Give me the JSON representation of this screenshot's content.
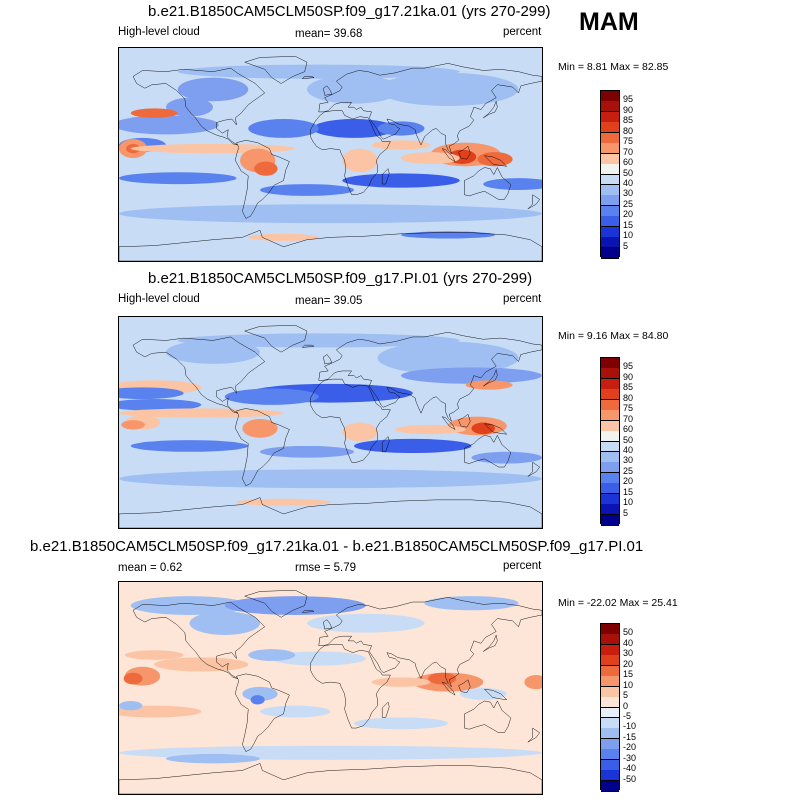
{
  "season": "MAM",
  "panels": [
    {
      "title": "b.e21.B1850CAM5CLM50SP.f09_g17.21ka.01 (yrs 270-299)",
      "left_label": "High-level cloud",
      "center_label": "mean=  39.68",
      "right_label": "percent",
      "minmax": "Min =  8.81 Max =  82.85",
      "colorbar": {
        "labels": [
          "95",
          "90",
          "85",
          "80",
          "75",
          "70",
          "60",
          "50",
          "40",
          "30",
          "25",
          "20",
          "15",
          "10",
          "5"
        ],
        "colors": [
          "#7f0000",
          "#a8100a",
          "#c81e10",
          "#e0401c",
          "#ee6a3c",
          "#f7956b",
          "#fbc5a5",
          "#f2f2ee",
          "#c8dcf6",
          "#9fbff2",
          "#7e9ff0",
          "#5a82ef",
          "#3a5ee8",
          "#1a34d8",
          "#0a14b0",
          "#00008a"
        ]
      }
    },
    {
      "title": "b.e21.B1850CAM5CLM50SP.f09_g17.PI.01 (yrs 270-299)",
      "left_label": "High-level cloud",
      "center_label": "mean=  39.05",
      "right_label": "percent",
      "minmax": "Min =  9.16 Max =  84.80",
      "colorbar": {
        "labels": [
          "95",
          "90",
          "85",
          "80",
          "75",
          "70",
          "60",
          "50",
          "40",
          "30",
          "25",
          "20",
          "15",
          "10",
          "5"
        ],
        "colors": [
          "#7f0000",
          "#a8100a",
          "#c81e10",
          "#e0401c",
          "#ee6a3c",
          "#f7956b",
          "#fbc5a5",
          "#f2f2ee",
          "#c8dcf6",
          "#9fbff2",
          "#7e9ff0",
          "#5a82ef",
          "#3a5ee8",
          "#1a34d8",
          "#0a14b0",
          "#00008a"
        ]
      }
    },
    {
      "title": "b.e21.B1850CAM5CLM50SP.f09_g17.21ka.01 - b.e21.B1850CAM5CLM50SP.f09_g17.PI.01",
      "left_label": "mean =   0.62",
      "center_label": "rmse =   5.79",
      "right_label": "percent",
      "minmax": "Min = -22.02 Max =  25.41",
      "colorbar": {
        "labels": [
          "50",
          "40",
          "30",
          "20",
          "15",
          "10",
          "5",
          "0",
          "-5",
          "-10",
          "-15",
          "-20",
          "-30",
          "-40",
          "-50"
        ],
        "colors": [
          "#7f0000",
          "#a8100a",
          "#c81e10",
          "#e0401c",
          "#ee6a3c",
          "#f7956b",
          "#fbc5a5",
          "#fde6d8",
          "#e8f0fa",
          "#c8dcf6",
          "#9fbff2",
          "#7e9ff0",
          "#5a82ef",
          "#3a5ee8",
          "#1a34d8",
          "#00008a"
        ]
      }
    }
  ]
}
